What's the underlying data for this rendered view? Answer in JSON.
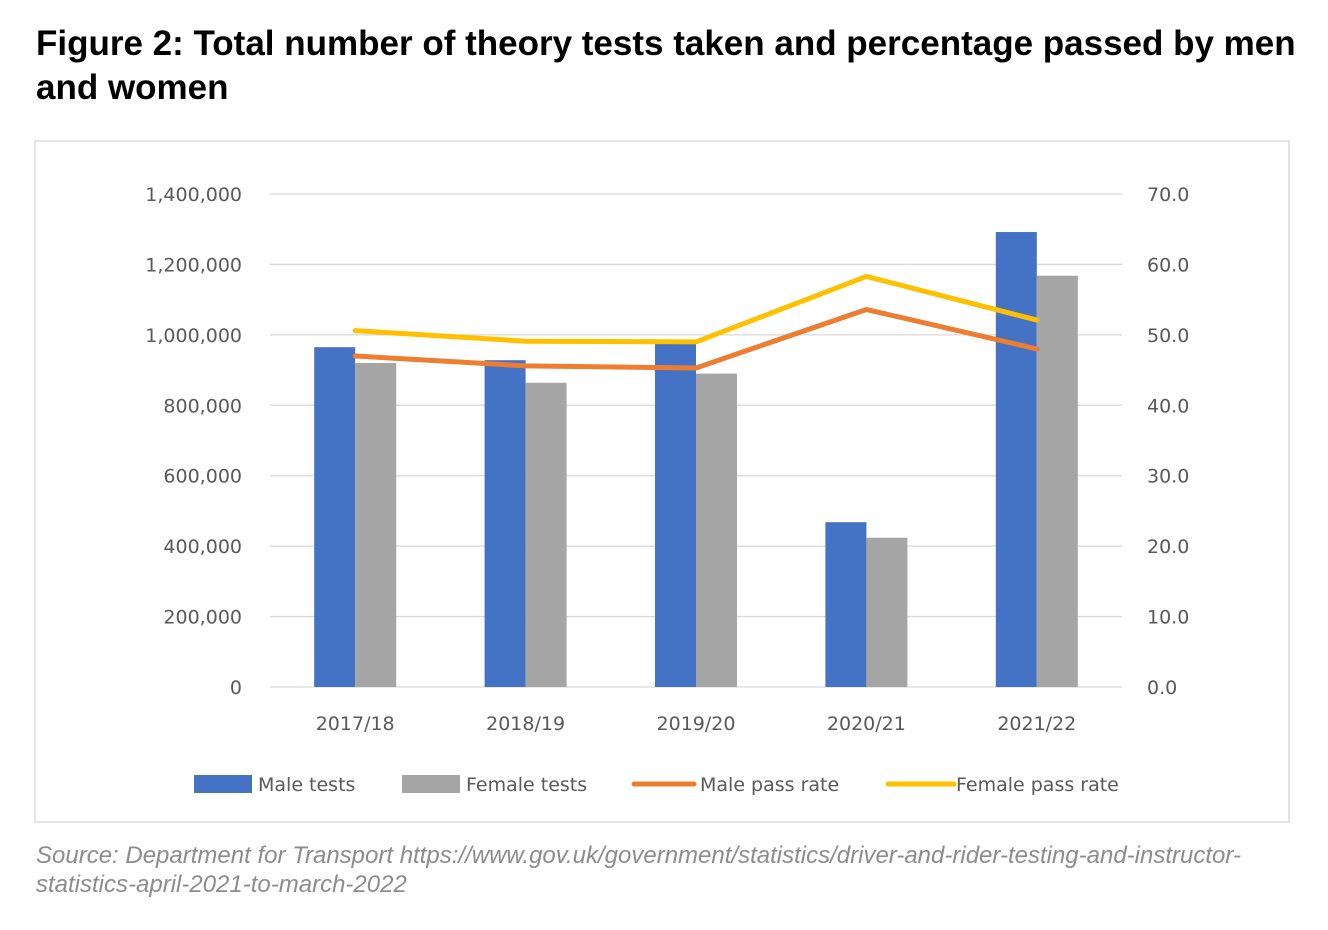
{
  "figure": {
    "title": "Figure 2: Total number of theory tests taken and percentage passed by men and women",
    "source": "Source: Department for Transport https://www.gov.uk/government/statistics/driver-and-rider-testing-and-instructor-statistics-april-2021-to-march-2022"
  },
  "chart_data": {
    "type": "bar",
    "title": "Figure 2: Total number of theory tests taken and percentage passed by men and women",
    "categories": [
      "2017/18",
      "2018/19",
      "2019/20",
      "2020/21",
      "2021/22"
    ],
    "series": [
      {
        "name": "Male tests",
        "type": "bar",
        "axis": "left",
        "color": "#4472c4",
        "values": [
          965000,
          928000,
          985000,
          468000,
          1292000
        ]
      },
      {
        "name": "Female tests",
        "type": "bar",
        "axis": "left",
        "color": "#a5a5a5",
        "values": [
          920000,
          864000,
          890000,
          424000,
          1168000
        ]
      },
      {
        "name": "Male pass rate",
        "type": "line",
        "axis": "right",
        "color": "#ed7d31",
        "values": [
          47.0,
          45.6,
          45.3,
          53.6,
          48.0
        ]
      },
      {
        "name": "Female pass rate",
        "type": "line",
        "axis": "right",
        "color": "#ffc000",
        "values": [
          50.6,
          49.1,
          49.0,
          58.3,
          52.1
        ]
      }
    ],
    "y_left": {
      "range": [
        0,
        1400000
      ],
      "ticks": [
        0,
        200000,
        400000,
        600000,
        800000,
        1000000,
        1200000,
        1400000
      ],
      "tick_labels": [
        "0",
        "200,000",
        "400,000",
        "600,000",
        "800,000",
        "1,000,000",
        "1,200,000",
        "1,400,000"
      ]
    },
    "y_right": {
      "range": [
        0,
        70
      ],
      "ticks": [
        0,
        10,
        20,
        30,
        40,
        50,
        60,
        70
      ],
      "tick_labels": [
        "0.0",
        "10.0",
        "20.0",
        "30.0",
        "40.0",
        "50.0",
        "60.0",
        "70.0"
      ]
    },
    "xlabel": "",
    "ylabel": "",
    "grid": true,
    "legend_position": "bottom",
    "gridline_color": "#d9d9d9"
  }
}
